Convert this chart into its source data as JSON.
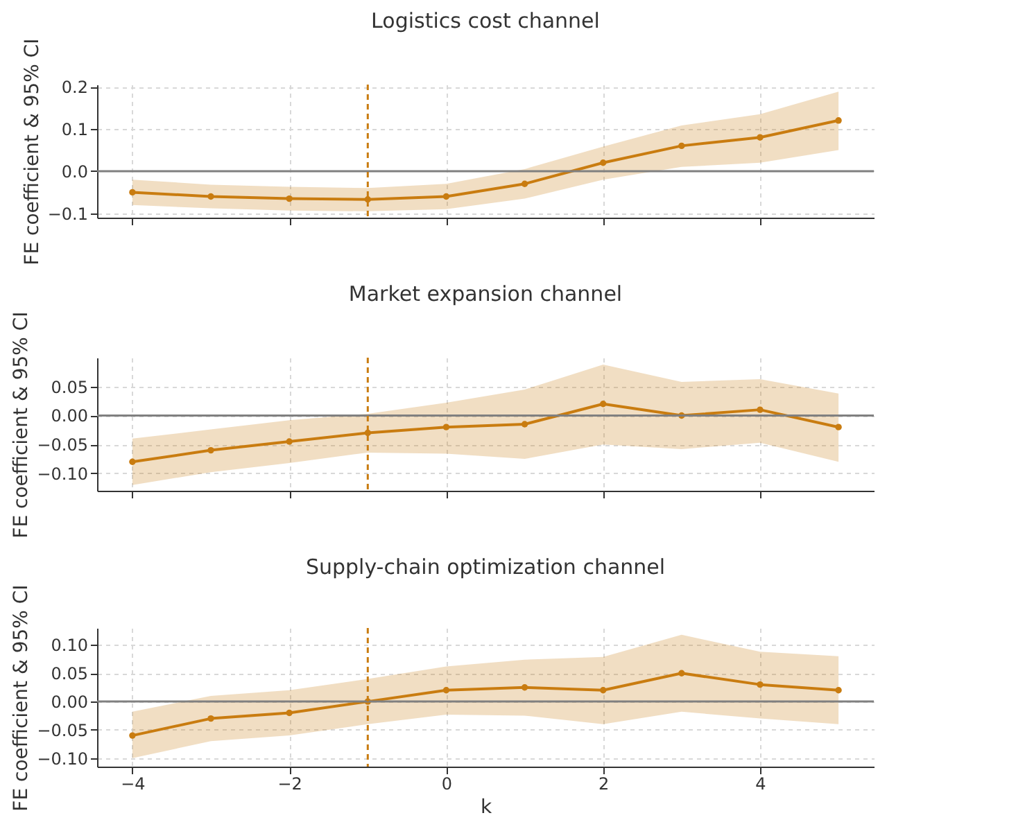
{
  "chart_data": [
    {
      "type": "line",
      "title": "Logistics cost channel",
      "ylabel": "FE coefficient & 95% CI",
      "x": [
        -4,
        -3,
        -2,
        -1,
        0,
        1,
        2,
        3,
        4,
        5
      ],
      "xlim": [
        -4.45,
        5.45
      ],
      "xticks": [
        -4,
        -2,
        0,
        2,
        4
      ],
      "ylim": [
        -0.11,
        0.205
      ],
      "yticks": [
        {
          "value": -0.1,
          "label": "−0.1"
        },
        {
          "value": 0,
          "label": "0.0"
        },
        0.1,
        0.2
      ],
      "tick_labels": "y",
      "grid": true,
      "marker": "circle",
      "line_style": "solid",
      "series": [
        {
          "color": "#c97c10",
          "values": [
            -0.05,
            -0.06,
            -0.065,
            -0.067,
            -0.06,
            -0.03,
            0.02,
            0.06,
            0.08,
            0.12
          ],
          "lower": [
            -0.08,
            -0.088,
            -0.093,
            -0.095,
            -0.09,
            -0.065,
            -0.02,
            0.01,
            0.02,
            0.05
          ],
          "upper": [
            -0.02,
            -0.032,
            -0.037,
            -0.04,
            -0.03,
            0.005,
            0.058,
            0.108,
            0.135,
            0.188
          ]
        }
      ],
      "ref_lines": [
        {
          "axis": "y",
          "value": 0,
          "color": "#808080",
          "line_style": "solid"
        },
        {
          "axis": "x",
          "value": -1,
          "color": "#c97c10",
          "line_style": "dashed"
        }
      ]
    },
    {
      "type": "line",
      "title": "Market expansion channel",
      "ylabel": "FE coefficient & 95% CI",
      "x": [
        -4,
        -3,
        -2,
        -1,
        0,
        1,
        2,
        3,
        4,
        5
      ],
      "xlim": [
        -4.45,
        5.45
      ],
      "xticks": [
        -4,
        -2,
        0,
        2,
        4
      ],
      "ylim": [
        -0.13,
        0.1
      ],
      "yticks": [
        {
          "value": -0.1,
          "label": "−0.10"
        },
        {
          "value": -0.05,
          "label": "−0.05"
        },
        {
          "value": 0,
          "label": "0.00"
        },
        0.05
      ],
      "tick_labels": "y",
      "grid": true,
      "marker": "circle",
      "line_style": "solid",
      "series": [
        {
          "color": "#c97c10",
          "values": [
            -0.08,
            -0.06,
            -0.045,
            -0.03,
            -0.02,
            -0.015,
            0.02,
            0,
            0.01,
            -0.02
          ],
          "lower": [
            -0.12,
            -0.098,
            -0.082,
            -0.064,
            -0.066,
            -0.075,
            -0.05,
            -0.058,
            -0.047,
            -0.08
          ],
          "upper": [
            -0.04,
            -0.024,
            -0.008,
            0.003,
            0.022,
            0.045,
            0.088,
            0.058,
            0.063,
            0.038
          ]
        }
      ],
      "ref_lines": [
        {
          "axis": "y",
          "value": 0,
          "color": "#808080",
          "line_style": "solid"
        },
        {
          "axis": "x",
          "value": -1,
          "color": "#c97c10",
          "line_style": "dashed"
        }
      ]
    },
    {
      "type": "line",
      "title": "Supply-chain optimization channel",
      "xlabel": "k",
      "ylabel": "FE coefficient & 95% CI",
      "x": [
        -4,
        -3,
        -2,
        -1,
        0,
        1,
        2,
        3,
        4,
        5
      ],
      "xlim": [
        -4.45,
        5.45
      ],
      "xticks": [
        {
          "value": -4,
          "label": "−4"
        },
        {
          "value": -2,
          "label": "−2"
        },
        0,
        2,
        4
      ],
      "ylim": [
        -0.115,
        0.13
      ],
      "yticks": [
        {
          "value": -0.1,
          "label": "−0.10"
        },
        {
          "value": -0.05,
          "label": "−0.05"
        },
        {
          "value": 0,
          "label": "0.00"
        },
        0.05,
        {
          "value": 0.1,
          "label": "0.10"
        }
      ],
      "grid": true,
      "marker": "circle",
      "line_style": "solid",
      "series": [
        {
          "color": "#c97c10",
          "values": [
            -0.06,
            -0.03,
            -0.02,
            0,
            0.02,
            0.025,
            0.02,
            0.05,
            0.03,
            0.02
          ],
          "lower": [
            -0.1,
            -0.07,
            -0.06,
            -0.04,
            -0.023,
            -0.025,
            -0.04,
            -0.018,
            -0.03,
            -0.04
          ],
          "upper": [
            -0.018,
            0.01,
            0.02,
            0.04,
            0.062,
            0.074,
            0.079,
            0.118,
            0.088,
            0.08
          ]
        }
      ],
      "ref_lines": [
        {
          "axis": "y",
          "value": 0,
          "color": "#808080",
          "line_style": "solid"
        },
        {
          "axis": "x",
          "value": -1,
          "color": "#c97c10",
          "line_style": "dashed"
        }
      ]
    }
  ]
}
